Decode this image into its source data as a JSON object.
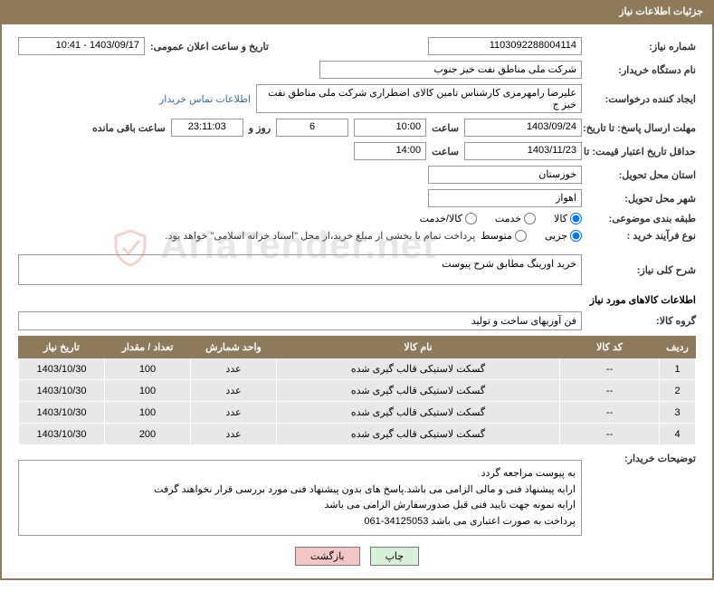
{
  "header": {
    "title": "جزئیات اطلاعات نیاز"
  },
  "need_number": {
    "label": "شماره نیاز:",
    "value": "1103092288004114"
  },
  "announce": {
    "label": "تاریخ و ساعت اعلان عمومی:",
    "value": "1403/09/17 - 10:41"
  },
  "buyer_org": {
    "label": "نام دستگاه خریدار:",
    "value": "شرکت ملی مناطق نفت خیز جنوب"
  },
  "requester": {
    "label": "ایجاد کننده درخواست:",
    "value": "علیرضا رامهرمزی کارشناس تامین کالای اضطراری شرکت ملی مناطق نفت خیز ج",
    "contact_link": "اطلاعات تماس خریدار"
  },
  "deadline": {
    "label": "مهلت ارسال پاسخ: تا تاریخ:",
    "date": "1403/09/24",
    "time_label": "ساعت",
    "time": "10:00",
    "days": "6",
    "days_label": "روز و",
    "countdown": "23:11:03",
    "remain_label": "ساعت باقی مانده"
  },
  "validity": {
    "label": "حداقل تاریخ اعتبار قیمت: تا تاریخ:",
    "date": "1403/11/23",
    "time_label": "ساعت",
    "time": "14:00"
  },
  "province": {
    "label": "استان محل تحویل:",
    "value": "خوزستان"
  },
  "city": {
    "label": "شهر محل تحویل:",
    "value": "اهواز"
  },
  "category": {
    "label": "طبقه بندی موضوعی:",
    "options": {
      "goods": "کالا",
      "service": "خدمت",
      "goods_service": "کالا/خدمت"
    }
  },
  "process": {
    "label": "نوع فرآیند خرید :",
    "options": {
      "partial": "جزیی",
      "medium": "متوسط"
    },
    "note": "پرداخت تمام یا بخشی از مبلغ خرید،از محل \"اسناد خزانه اسلامی\" خواهد بود."
  },
  "general_desc": {
    "label": "شرح کلی نیاز:",
    "value": "خرید اورینگ مطابق شرح پیوست"
  },
  "items_title": "اطلاعات کالاهای مورد نیاز",
  "group": {
    "label": "گروه کالا:",
    "value": "فن آوریهای ساخت و تولید"
  },
  "table": {
    "headers": {
      "row": "ردیف",
      "code": "کد کالا",
      "name": "نام کالا",
      "unit": "واحد شمارش",
      "qty": "تعداد / مقدار",
      "date": "تاریخ نیاز"
    },
    "rows": [
      {
        "row": "1",
        "code": "--",
        "name": "گسکت لاستیکی قالب گیری شده",
        "unit": "عدد",
        "qty": "100",
        "date": "1403/10/30"
      },
      {
        "row": "2",
        "code": "--",
        "name": "گسکت لاستیکی قالب گیری شده",
        "unit": "عدد",
        "qty": "100",
        "date": "1403/10/30"
      },
      {
        "row": "3",
        "code": "--",
        "name": "گسکت لاستیکی قالب گیری شده",
        "unit": "عدد",
        "qty": "100",
        "date": "1403/10/30"
      },
      {
        "row": "4",
        "code": "--",
        "name": "گسکت لاستیکی قالب گیری شده",
        "unit": "عدد",
        "qty": "200",
        "date": "1403/10/30"
      }
    ]
  },
  "buyer_notes": {
    "label": "توضیحات خریدار:",
    "l1": "به پیوست مراجعه گردد",
    "l2": "ارایه پیشنهاد فنی و مالی الزامی می باشد.پاسخ های بدون پیشنهاد فنی مورد بررسی قرار نخواهند گرفت",
    "l3": "ارایه نمونه جهت تایید فنی قبل صدورسفارش الزامی می باشد",
    "l4": "پرداخت به صورت اعتباری می باشد 34125053-061"
  },
  "buttons": {
    "print": "چاپ",
    "back": "بازگشت"
  },
  "watermark": "AriaTender.net",
  "colors": {
    "header_bg": "#8c7a5b",
    "row_bg": "#e8e8e8",
    "link": "#3a6ea5"
  }
}
